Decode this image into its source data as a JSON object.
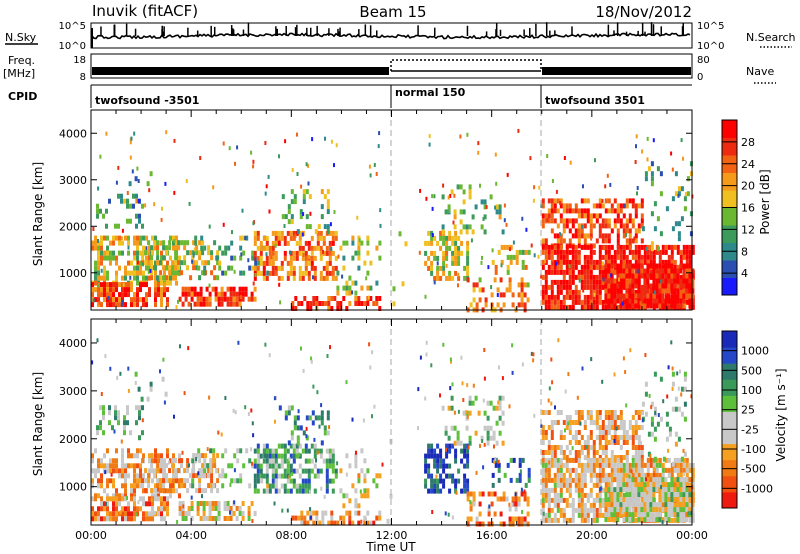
{
  "header": {
    "station": "Inuvik (fitACF)",
    "beam": "Beam 15",
    "date": "18/Nov/2012"
  },
  "noise_panel": {
    "left_label": "N.Sky",
    "right_label": "N.Search",
    "left_ticks": [
      "10^5",
      "10^0"
    ],
    "right_ticks": [
      "10^5",
      "10^0"
    ]
  },
  "freq_panel": {
    "left_label_top": "Freq.",
    "left_label_unit": "[MHz]",
    "left_ticks": [
      "18",
      "8"
    ],
    "right_label": "Nave",
    "right_ticks": [
      "80",
      "0"
    ]
  },
  "cpid": {
    "label": "CPID",
    "segments": [
      {
        "start_hour": 0,
        "end_hour": 12,
        "text": "twofsound -3501"
      },
      {
        "start_hour": 12,
        "end_hour": 18,
        "text": "normal 150"
      },
      {
        "start_hour": 18,
        "end_hour": 24,
        "text": "twofsound 3501"
      }
    ]
  },
  "chart_data": [
    {
      "type": "heatmap",
      "name": "power",
      "ylabel": "Slant Range [km]",
      "xlim": [
        0,
        24
      ],
      "ylim": [
        200,
        4500
      ],
      "yticks": [
        "1000",
        "2000",
        "3000",
        "4000"
      ],
      "colorbar": {
        "label": "Power [dB]",
        "tick_labels": [
          "4",
          "8",
          "12",
          "16",
          "20",
          "24",
          "28"
        ],
        "colors": [
          "#1a1aff",
          "#2b4fb0",
          "#2e8a8a",
          "#3c9a5a",
          "#6ab832",
          "#f0c020",
          "#f59a1a",
          "#f26414",
          "#ee2a10",
          "#ff0000"
        ]
      }
    },
    {
      "type": "heatmap",
      "name": "velocity",
      "ylabel": "Slant Range [km]",
      "xlabel": "Time UT",
      "xlim": [
        0,
        24
      ],
      "ylim": [
        200,
        4500
      ],
      "yticks": [
        "1000",
        "2000",
        "3000",
        "4000"
      ],
      "xticks": [
        "00:00",
        "04:00",
        "08:00",
        "12:00",
        "16:00",
        "20:00",
        "00:00"
      ],
      "colorbar": {
        "label": "Velocity [m s⁻¹]",
        "tick_labels": [
          "1000",
          "500",
          "100",
          "25",
          "-25",
          "-100",
          "-500",
          "-1000"
        ],
        "colors": [
          "#1a2ab8",
          "#2448c8",
          "#2e7a6a",
          "#3a9a5a",
          "#5ec03a",
          "#c8c8c8",
          "#c8c8c8",
          "#f5a020",
          "#f07a14",
          "#f25010",
          "#ee1a10"
        ]
      }
    }
  ]
}
